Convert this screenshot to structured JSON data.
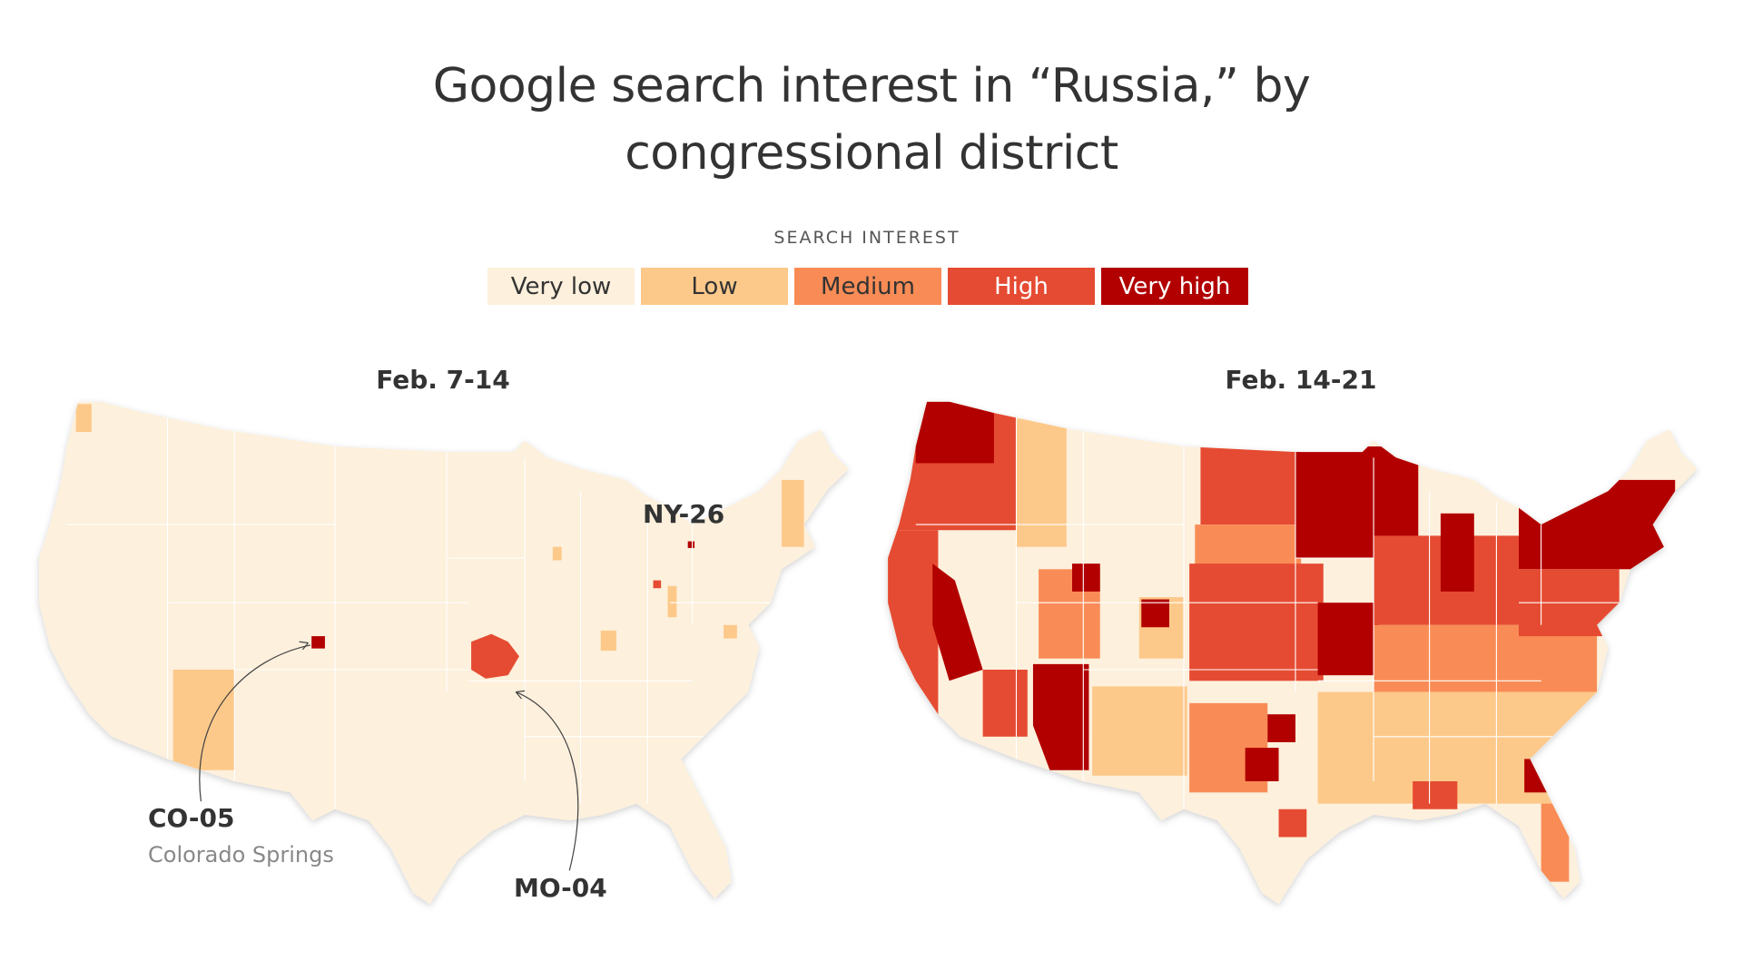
{
  "title": "Google search interest in “Russia,” by congressional district",
  "legend": {
    "title": "SEARCH INTEREST",
    "items": [
      {
        "label": "Very low",
        "color": "#fdf0dc"
      },
      {
        "label": "Low",
        "color": "#fdc98a"
      },
      {
        "label": "Medium",
        "color": "#f98c56"
      },
      {
        "label": "High",
        "color": "#e54b32"
      },
      {
        "label": "Very high",
        "color": "#b20000"
      }
    ]
  },
  "maps": [
    {
      "title": "Feb. 7-14",
      "annotations": [
        {
          "label": "NY-26"
        },
        {
          "label": "CO-05",
          "sublabel": "Colorado Springs"
        },
        {
          "label": "MO-04"
        }
      ]
    },
    {
      "title": "Feb. 14-21"
    }
  ]
}
